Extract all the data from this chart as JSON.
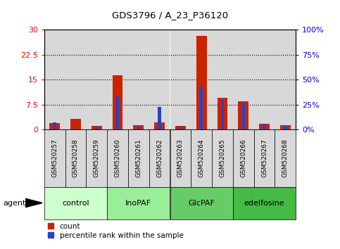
{
  "title": "GDS3796 / A_23_P36120",
  "samples": [
    "GSM520257",
    "GSM520258",
    "GSM520259",
    "GSM520260",
    "GSM520261",
    "GSM520262",
    "GSM520263",
    "GSM520264",
    "GSM520265",
    "GSM520266",
    "GSM520267",
    "GSM520268"
  ],
  "counts": [
    2.0,
    3.2,
    1.1,
    16.3,
    1.2,
    2.2,
    1.1,
    28.2,
    9.5,
    8.5,
    1.8,
    1.3
  ],
  "percentiles": [
    7.0,
    0.5,
    3.5,
    33.0,
    3.5,
    22.5,
    3.0,
    43.0,
    29.5,
    27.0,
    5.5,
    3.5
  ],
  "groups": [
    {
      "label": "control",
      "start": 0,
      "end": 3,
      "color": "#ccffcc"
    },
    {
      "label": "InoPAF",
      "start": 3,
      "end": 6,
      "color": "#99ee99"
    },
    {
      "label": "GlcPAF",
      "start": 6,
      "end": 9,
      "color": "#66cc66"
    },
    {
      "label": "edelfosine",
      "start": 9,
      "end": 12,
      "color": "#44bb44"
    }
  ],
  "red_color": "#cc2200",
  "blue_color": "#2244cc",
  "ylim_left": [
    0,
    30
  ],
  "ylim_right": [
    0,
    100
  ],
  "yticks_left": [
    0,
    7.5,
    15,
    22.5,
    30
  ],
  "yticks_right": [
    0,
    25,
    50,
    75,
    100
  ],
  "ytick_labels_left": [
    "0",
    "7.5",
    "15",
    "22.5",
    "30"
  ],
  "ytick_labels_right": [
    "0%",
    "25%",
    "50%",
    "75%",
    "100%"
  ],
  "legend_count": "count",
  "legend_pct": "percentile rank within the sample",
  "agent_label": "agent",
  "sample_bg_color": "#d8d8d8",
  "plot_bg_color": "#ffffff"
}
